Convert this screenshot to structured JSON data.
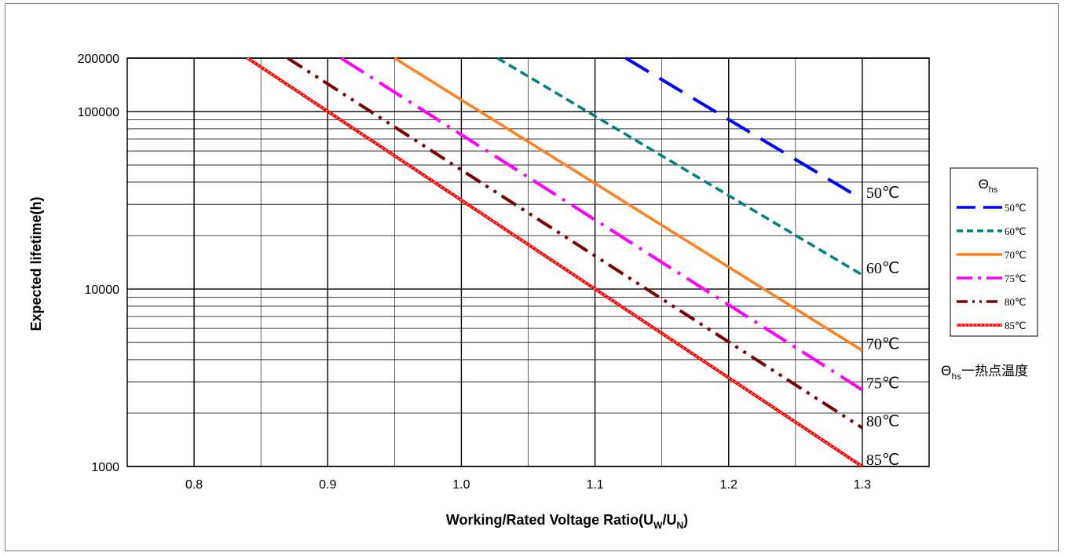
{
  "chart_data": {
    "type": "line",
    "xlabel_main": "Working/Rated Voltage Ratio(U",
    "xlabel_sub_w": "W",
    "xlabel_sep": "/U",
    "xlabel_sub_n": "N",
    "xlabel_close": ")",
    "ylabel": "Expected lifetime(h)",
    "x_scale": "linear",
    "y_scale": "log",
    "xlim": [
      0.75,
      1.35
    ],
    "ylim": [
      1000,
      200000
    ],
    "x_ticks": [
      0.8,
      0.9,
      1.0,
      1.1,
      1.2,
      1.3
    ],
    "x_tick_labels": [
      "0.8",
      "0.9",
      "1.0",
      "1.1",
      "1.2",
      "1.3"
    ],
    "y_tick_values": [
      1000,
      10000,
      100000,
      200000
    ],
    "y_tick_labels": [
      "1000",
      "10000",
      "100000",
      "200000"
    ],
    "grid": true,
    "legend_title_main": "Θ",
    "legend_title_sub": "hs",
    "legend_position": "right",
    "series": [
      {
        "name": "50℃",
        "end_label": "50℃",
        "color": "#0000ff",
        "style": "long-dash",
        "x": [
          1.123,
          1.3
        ],
        "y": [
          200000,
          32000
        ]
      },
      {
        "name": "60℃",
        "end_label": "60℃",
        "color": "#008080",
        "style": "short-dash",
        "x": [
          1.027,
          1.3
        ],
        "y": [
          200000,
          12000
        ]
      },
      {
        "name": "70℃",
        "end_label": "70℃",
        "color": "#ff7f1f",
        "style": "solid",
        "x": [
          0.95,
          1.3
        ],
        "y": [
          200000,
          4500
        ]
      },
      {
        "name": "75℃",
        "end_label": "75℃",
        "color": "#ff00ff",
        "style": "dash-dot",
        "x": [
          0.91,
          1.3
        ],
        "y": [
          200000,
          2700
        ]
      },
      {
        "name": "80℃",
        "end_label": "80℃",
        "color": "#7f0000",
        "style": "dash-dot-dot",
        "x": [
          0.87,
          1.3
        ],
        "y": [
          200000,
          1650
        ]
      },
      {
        "name": "85℃",
        "end_label": "85℃",
        "color": "#ff0000",
        "style": "dotted-thick",
        "x": [
          0.84,
          1.3
        ],
        "y": [
          200000,
          1000
        ]
      }
    ],
    "annotation": {
      "symbol": "Θ",
      "sub": "hs",
      "text": "一热点温度"
    }
  }
}
